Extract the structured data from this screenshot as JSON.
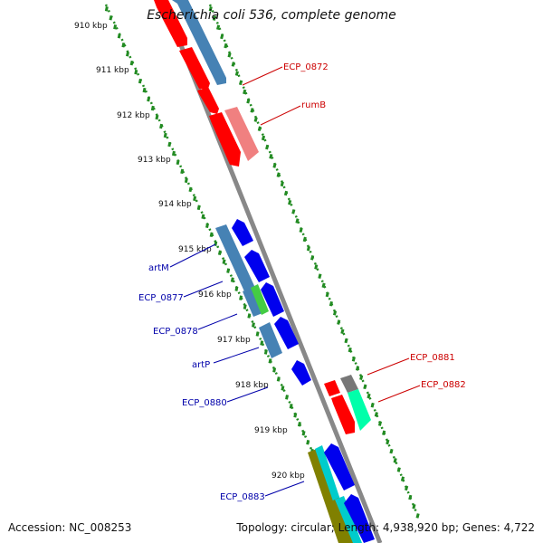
{
  "title": "Escherichia coli 536, complete genome",
  "accession": "Accession: NC_008253",
  "topology": "Topology: circular; Length: 4,938,920 bp; Genes: 4,722",
  "kbp_labels": [
    "910 kbp",
    "911 kbp",
    "912 kbp",
    "913 kbp",
    "914 kbp",
    "915 kbp",
    "916 kbp",
    "917 kbp",
    "918 kbp",
    "919 kbp",
    "920 kbp"
  ],
  "genes_right": [
    {
      "name": "ECP_0872",
      "color": "#cc0000"
    },
    {
      "name": "rumB",
      "color": "#cc0000"
    },
    {
      "name": "ECP_0881",
      "color": "#cc0000"
    },
    {
      "name": "ECP_0882",
      "color": "#cc0000"
    }
  ],
  "genes_left": [
    {
      "name": "artM",
      "color": "#0000aa"
    },
    {
      "name": "ECP_0877",
      "color": "#0000aa"
    },
    {
      "name": "ECP_0878",
      "color": "#0000aa"
    },
    {
      "name": "artP",
      "color": "#0000aa"
    },
    {
      "name": "ECP_0880",
      "color": "#0000aa"
    },
    {
      "name": "ECP_0883",
      "color": "#0000aa"
    }
  ],
  "colors": {
    "forward_cds": "#ff0000",
    "forward_rna": "#f08080",
    "reverse_cds": "#0000ee",
    "other_cds": "#4682b4",
    "green_cds": "#44cc44",
    "teal_cds": "#00ffaa",
    "gray_cds": "#777777",
    "olive_cds": "#808000",
    "cyan_cds": "#00cccc",
    "backbone": "#999999",
    "ticks": "#228b22"
  }
}
